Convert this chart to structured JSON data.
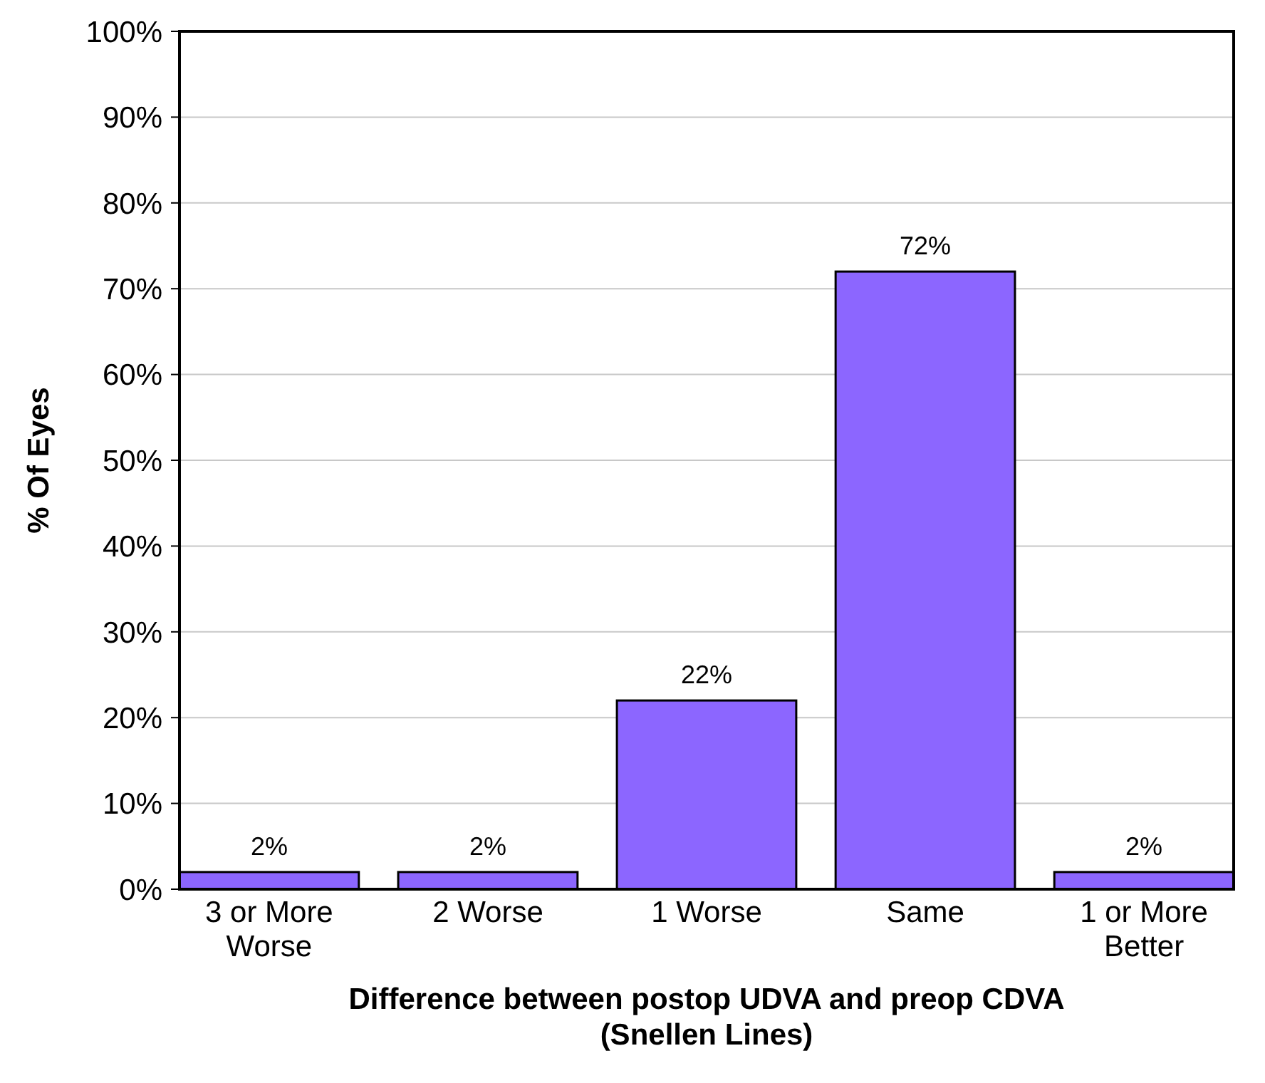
{
  "chart_data": {
    "type": "bar",
    "xlabel": "Difference between postop UDVA and preop CDVA (Snellen Lines)",
    "ylabel": "% Of Eyes",
    "categories": [
      "3 or More Worse",
      "2 Worse",
      "1 Worse",
      "Same",
      "1 or More Better"
    ],
    "values": [
      2,
      2,
      22,
      72,
      2
    ],
    "color": "#8c66ff",
    "value_labels": [
      "2%",
      "2%",
      "22%",
      "72%",
      "2%"
    ],
    "ylim": [
      0,
      100
    ],
    "yticks": [
      {
        "value": 0,
        "label": "0%"
      },
      {
        "value": 10,
        "label": "10%"
      },
      {
        "value": 20,
        "label": "20%"
      },
      {
        "value": 30,
        "label": "30%"
      },
      {
        "value": 40,
        "label": "40%"
      },
      {
        "value": 50,
        "label": "50%"
      },
      {
        "value": 60,
        "label": "60%"
      },
      {
        "value": 70,
        "label": "70%"
      },
      {
        "value": 80,
        "label": "80%"
      },
      {
        "value": 90,
        "label": "90%"
      },
      {
        "value": 100,
        "label": "100%"
      }
    ],
    "grid": "y"
  }
}
